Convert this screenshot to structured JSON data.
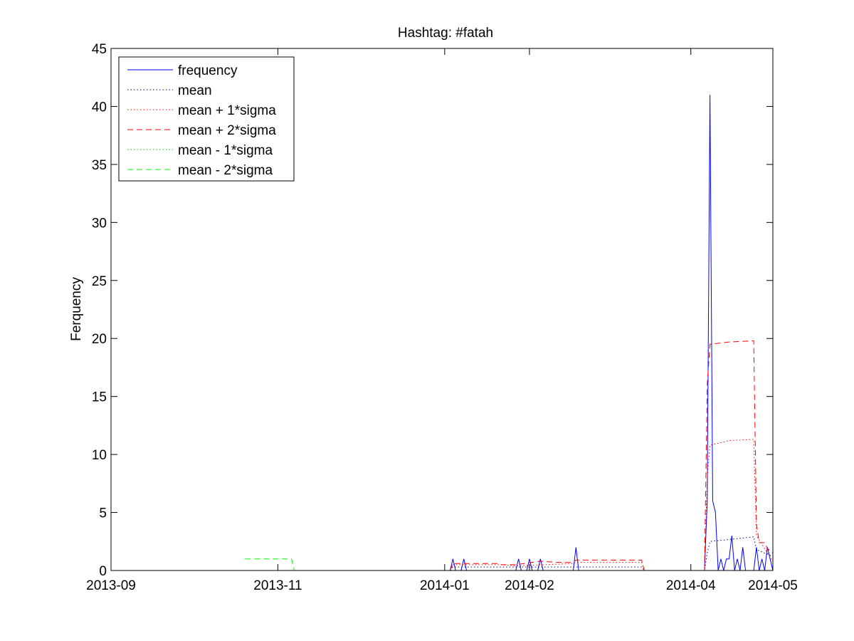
{
  "chart_data": {
    "type": "line",
    "title": "Hashtag: #fatah",
    "xlabel": "",
    "ylabel": "Ferquency",
    "x_axis": {
      "type": "date",
      "range": [
        "2013-09-01",
        "2014-05-01"
      ],
      "ticks": [
        "2013-09",
        "2013-11",
        "2014-01",
        "2014-02",
        "2014-04",
        "2014-05"
      ]
    },
    "ylim": [
      0,
      45
    ],
    "yticks": [
      0,
      5,
      10,
      15,
      20,
      25,
      30,
      35,
      40,
      45
    ],
    "grid": false,
    "legend_position": "top-left",
    "series": [
      {
        "name": "frequency",
        "color": "#0000ff",
        "style": "solid",
        "points": [
          [
            "2014-01-03",
            0
          ],
          [
            "2014-01-04",
            1
          ],
          [
            "2014-01-05",
            0
          ],
          [
            "2014-01-07",
            0
          ],
          [
            "2014-01-08",
            1
          ],
          [
            "2014-01-09",
            0
          ],
          [
            "2014-01-27",
            0
          ],
          [
            "2014-01-28",
            1
          ],
          [
            "2014-01-29",
            0
          ],
          [
            "2014-01-31",
            0
          ],
          [
            "2014-02-01",
            1
          ],
          [
            "2014-02-02",
            0
          ],
          [
            "2014-02-04",
            0
          ],
          [
            "2014-02-05",
            1
          ],
          [
            "2014-02-06",
            0
          ],
          [
            "2014-02-17",
            0
          ],
          [
            "2014-02-18",
            2
          ],
          [
            "2014-02-19",
            0
          ],
          [
            "2014-04-06",
            0
          ],
          [
            "2014-04-07",
            6
          ],
          [
            "2014-04-08",
            41
          ],
          [
            "2014-04-09",
            6
          ],
          [
            "2014-04-10",
            5
          ],
          [
            "2014-04-11",
            0
          ],
          [
            "2014-04-12",
            1
          ],
          [
            "2014-04-13",
            0
          ],
          [
            "2014-04-14",
            1
          ],
          [
            "2014-04-15",
            1
          ],
          [
            "2014-04-16",
            3
          ],
          [
            "2014-04-17",
            0
          ],
          [
            "2014-04-18",
            1
          ],
          [
            "2014-04-19",
            0
          ],
          [
            "2014-04-20",
            2
          ],
          [
            "2014-04-21",
            0
          ],
          [
            "2014-04-24",
            0
          ],
          [
            "2014-04-25",
            2
          ],
          [
            "2014-04-26",
            0
          ],
          [
            "2014-04-27",
            1
          ],
          [
            "2014-04-28",
            0
          ],
          [
            "2014-04-29",
            2
          ],
          [
            "2014-04-30",
            1
          ],
          [
            "2014-05-01",
            0
          ]
        ]
      },
      {
        "name": "mean",
        "color": "#000080",
        "style": "dotted",
        "points": [
          [
            "2014-01-03",
            0
          ],
          [
            "2014-01-04",
            0.3
          ],
          [
            "2014-01-16",
            0.3
          ],
          [
            "2014-01-27",
            0.3
          ],
          [
            "2014-02-25",
            0.3
          ],
          [
            "2014-03-14",
            0.3
          ],
          [
            "2014-03-15",
            0
          ],
          [
            "2014-04-06",
            0
          ],
          [
            "2014-04-07",
            1.5
          ],
          [
            "2014-04-08",
            2.5
          ],
          [
            "2014-04-24",
            2.9
          ],
          [
            "2014-04-25",
            1.8
          ],
          [
            "2014-05-01",
            1.2
          ]
        ]
      },
      {
        "name": "mean + 1*sigma",
        "color": "#ff0000",
        "style": "dotted",
        "points": [
          [
            "2014-01-03",
            0
          ],
          [
            "2014-01-04",
            0.5
          ],
          [
            "2014-01-22",
            0.5
          ],
          [
            "2014-01-27",
            0.4
          ],
          [
            "2014-02-17",
            0.6
          ],
          [
            "2014-02-18",
            0.7
          ],
          [
            "2014-03-14",
            0.7
          ],
          [
            "2014-03-15",
            0
          ],
          [
            "2014-04-06",
            0
          ],
          [
            "2014-04-07",
            8
          ],
          [
            "2014-04-08",
            10.8
          ],
          [
            "2014-04-15",
            11.2
          ],
          [
            "2014-04-24",
            11.3
          ],
          [
            "2014-04-25",
            3
          ],
          [
            "2014-05-01",
            0.8
          ]
        ]
      },
      {
        "name": "mean + 2*sigma",
        "color": "#ff0000",
        "style": "dashed",
        "points": [
          [
            "2014-01-03",
            0
          ],
          [
            "2014-01-04",
            0.6
          ],
          [
            "2014-01-20",
            0.6
          ],
          [
            "2014-01-21",
            0.5
          ],
          [
            "2014-01-27",
            0.5
          ],
          [
            "2014-02-05",
            0.8
          ],
          [
            "2014-02-11",
            0.7
          ],
          [
            "2014-02-17",
            0.7
          ],
          [
            "2014-02-18",
            0.9
          ],
          [
            "2014-03-14",
            0.9
          ],
          [
            "2014-03-15",
            0
          ],
          [
            "2014-04-06",
            0
          ],
          [
            "2014-04-07",
            16
          ],
          [
            "2014-04-08",
            19.5
          ],
          [
            "2014-04-15",
            19.7
          ],
          [
            "2014-04-24",
            19.8
          ],
          [
            "2014-04-25",
            4
          ],
          [
            "2014-04-26",
            2.4
          ],
          [
            "2014-04-28",
            2.4
          ],
          [
            "2014-04-29",
            1.9
          ],
          [
            "2014-04-30",
            1.7
          ],
          [
            "2014-05-01",
            1.5
          ]
        ]
      },
      {
        "name": "mean - 1*sigma",
        "color": "#00cc00",
        "style": "dotted",
        "points": [
          [
            "2013-10-20",
            0
          ],
          [
            "2013-11-06",
            0
          ]
        ]
      },
      {
        "name": "mean - 2*sigma",
        "color": "#00ff00",
        "style": "dashed",
        "points": [
          [
            "2013-10-20",
            1
          ],
          [
            "2013-11-06",
            1
          ],
          [
            "2013-11-07",
            0
          ]
        ]
      }
    ]
  }
}
